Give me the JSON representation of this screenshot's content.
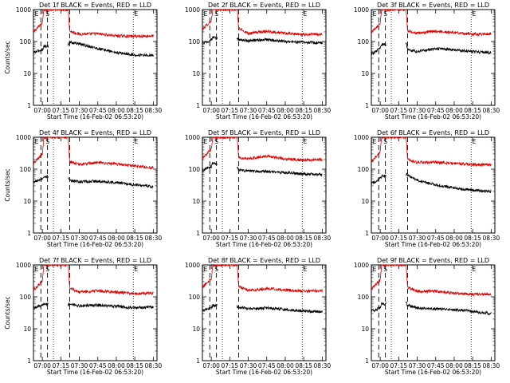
{
  "chart_data": [
    {
      "type": "line",
      "title": "Det 1f BLACK = Events, RED = LLD",
      "xlabel": "Start Time (16-Feb-02 06:53:20)",
      "ylabel": "Counts/sec",
      "x_ticks": [
        "07:00",
        "07:15",
        "07:30",
        "07:45",
        "08:00",
        "08:15",
        "08:30"
      ],
      "y_ticks": [
        "1",
        "10",
        "100",
        "1000"
      ],
      "ylim": [
        1,
        1000
      ],
      "yscale": "log",
      "markers": [
        "S",
        "E"
      ],
      "series": [
        {
          "name": "LLD",
          "color": "#e00000",
          "values": [
            [
              6.88,
              200
            ],
            [
              7.0,
              380
            ],
            [
              7.02,
              1000
            ],
            [
              7.35,
              1000
            ],
            [
              7.37,
              210
            ],
            [
              7.5,
              170
            ],
            [
              7.75,
              175
            ],
            [
              8.0,
              150
            ],
            [
              8.25,
              145
            ],
            [
              8.5,
              150
            ]
          ]
        },
        {
          "name": "Events",
          "color": "#000000",
          "values": [
            [
              6.88,
              45
            ],
            [
              7.0,
              55
            ],
            [
              7.02,
              70
            ],
            [
              7.35,
              80
            ],
            [
              7.37,
              95
            ],
            [
              7.5,
              85
            ],
            [
              7.75,
              60
            ],
            [
              8.0,
              45
            ],
            [
              8.25,
              38
            ],
            [
              8.5,
              37
            ]
          ]
        }
      ]
    },
    {
      "type": "line",
      "title": "Det 2f BLACK = Events, RED = LLD",
      "xlabel": "Start Time (16-Feb-02 06:53:20)",
      "ylabel": "",
      "x_ticks": [
        "07:00",
        "07:15",
        "07:30",
        "07:45",
        "08:00",
        "08:15",
        "08:30"
      ],
      "y_ticks": [
        "1",
        "10",
        "100",
        "1000"
      ],
      "ylim": [
        1,
        1000
      ],
      "yscale": "log",
      "markers": [
        "S",
        "E"
      ],
      "series": [
        {
          "name": "LLD",
          "color": "#e00000",
          "values": [
            [
              6.88,
              240
            ],
            [
              7.0,
              450
            ],
            [
              7.02,
              1000
            ],
            [
              7.35,
              1000
            ],
            [
              7.37,
              260
            ],
            [
              7.5,
              180
            ],
            [
              7.75,
              210
            ],
            [
              8.0,
              180
            ],
            [
              8.25,
              165
            ],
            [
              8.5,
              170
            ]
          ]
        },
        {
          "name": "Events",
          "color": "#000000",
          "values": [
            [
              6.88,
              90
            ],
            [
              7.0,
              110
            ],
            [
              7.02,
              130
            ],
            [
              7.35,
              120
            ],
            [
              7.37,
              115
            ],
            [
              7.5,
              105
            ],
            [
              7.75,
              115
            ],
            [
              8.0,
              100
            ],
            [
              8.25,
              95
            ],
            [
              8.5,
              90
            ]
          ]
        }
      ]
    },
    {
      "type": "line",
      "title": "Det 3f BLACK = Events, RED = LLD",
      "xlabel": "Start Time (16-Feb-02 06:53:20)",
      "ylabel": "",
      "x_ticks": [
        "07:00",
        "07:15",
        "07:30",
        "07:45",
        "08:00",
        "08:15",
        "08:30"
      ],
      "y_ticks": [
        "1",
        "10",
        "100",
        "1000"
      ],
      "ylim": [
        1,
        1000
      ],
      "yscale": "log",
      "markers": [
        "S",
        "E"
      ],
      "series": [
        {
          "name": "LLD",
          "color": "#e00000",
          "values": [
            [
              6.88,
              200
            ],
            [
              7.0,
              380
            ],
            [
              7.02,
              1000
            ],
            [
              7.35,
              1000
            ],
            [
              7.37,
              220
            ],
            [
              7.5,
              180
            ],
            [
              7.75,
              210
            ],
            [
              8.0,
              190
            ],
            [
              8.25,
              170
            ],
            [
              8.5,
              175
            ]
          ]
        },
        {
          "name": "Events",
          "color": "#000000",
          "values": [
            [
              6.88,
              40
            ],
            [
              7.0,
              60
            ],
            [
              7.02,
              80
            ],
            [
              7.35,
              90
            ],
            [
              7.37,
              55
            ],
            [
              7.5,
              48
            ],
            [
              7.75,
              60
            ],
            [
              8.0,
              55
            ],
            [
              8.25,
              48
            ],
            [
              8.5,
              45
            ]
          ]
        }
      ]
    },
    {
      "type": "line",
      "title": "Det 4f BLACK = Events, RED = LLD",
      "xlabel": "Start Time (16-Feb-02 06:53:20)",
      "ylabel": "Counts/sec",
      "x_ticks": [
        "07:00",
        "07:15",
        "07:30",
        "07:45",
        "08:00",
        "08:15",
        "08:30"
      ],
      "y_ticks": [
        "1",
        "10",
        "100",
        "1000"
      ],
      "ylim": [
        1,
        1000
      ],
      "yscale": "log",
      "markers": [
        "S",
        "E"
      ],
      "series": [
        {
          "name": "LLD",
          "color": "#e00000",
          "values": [
            [
              6.88,
              150
            ],
            [
              7.0,
              300
            ],
            [
              7.02,
              1000
            ],
            [
              7.35,
              1000
            ],
            [
              7.37,
              170
            ],
            [
              7.5,
              140
            ],
            [
              7.75,
              160
            ],
            [
              8.0,
              145
            ],
            [
              8.25,
              125
            ],
            [
              8.5,
              110
            ]
          ]
        },
        {
          "name": "Events",
          "color": "#000000",
          "values": [
            [
              6.88,
              40
            ],
            [
              7.0,
              50
            ],
            [
              7.02,
              60
            ],
            [
              7.35,
              55
            ],
            [
              7.37,
              45
            ],
            [
              7.5,
              40
            ],
            [
              7.75,
              42
            ],
            [
              8.0,
              38
            ],
            [
              8.25,
              32
            ],
            [
              8.5,
              28
            ]
          ]
        }
      ]
    },
    {
      "type": "line",
      "title": "Det 5f BLACK = Events, RED = LLD",
      "xlabel": "Start Time (16-Feb-02 06:53:20)",
      "ylabel": "",
      "x_ticks": [
        "07:00",
        "07:15",
        "07:30",
        "07:45",
        "08:00",
        "08:15",
        "08:30"
      ],
      "y_ticks": [
        "1",
        "10",
        "100",
        "1000"
      ],
      "ylim": [
        1,
        1000
      ],
      "yscale": "log",
      "markers": [
        "S",
        "E"
      ],
      "series": [
        {
          "name": "LLD",
          "color": "#e00000",
          "values": [
            [
              6.88,
              220
            ],
            [
              7.0,
              420
            ],
            [
              7.02,
              1000
            ],
            [
              7.35,
              1000
            ],
            [
              7.37,
              230
            ],
            [
              7.5,
              210
            ],
            [
              7.75,
              260
            ],
            [
              8.0,
              210
            ],
            [
              8.25,
              190
            ],
            [
              8.5,
              200
            ]
          ]
        },
        {
          "name": "Events",
          "color": "#000000",
          "values": [
            [
              6.88,
              90
            ],
            [
              7.0,
              120
            ],
            [
              7.02,
              150
            ],
            [
              7.35,
              120
            ],
            [
              7.37,
              95
            ],
            [
              7.5,
              88
            ],
            [
              7.75,
              85
            ],
            [
              8.0,
              78
            ],
            [
              8.25,
              70
            ],
            [
              8.5,
              68
            ]
          ]
        }
      ]
    },
    {
      "type": "line",
      "title": "Det 6f BLACK = Events, RED = LLD",
      "xlabel": "Start Time (16-Feb-02 06:53:20)",
      "ylabel": "",
      "x_ticks": [
        "07:00",
        "07:15",
        "07:30",
        "07:45",
        "08:00",
        "08:15",
        "08:30"
      ],
      "y_ticks": [
        "1",
        "10",
        "100",
        "1000"
      ],
      "ylim": [
        1,
        1000
      ],
      "yscale": "log",
      "markers": [
        "S",
        "E"
      ],
      "series": [
        {
          "name": "LLD",
          "color": "#e00000",
          "values": [
            [
              6.88,
              170
            ],
            [
              7.0,
              350
            ],
            [
              7.02,
              1000
            ],
            [
              7.35,
              1000
            ],
            [
              7.37,
              200
            ],
            [
              7.5,
              160
            ],
            [
              7.75,
              165
            ],
            [
              8.0,
              150
            ],
            [
              8.25,
              140
            ],
            [
              8.5,
              135
            ]
          ]
        },
        {
          "name": "Events",
          "color": "#000000",
          "values": [
            [
              6.88,
              35
            ],
            [
              7.0,
              50
            ],
            [
              7.02,
              60
            ],
            [
              7.35,
              70
            ],
            [
              7.37,
              65
            ],
            [
              7.5,
              45
            ],
            [
              7.75,
              32
            ],
            [
              8.0,
              26
            ],
            [
              8.25,
              22
            ],
            [
              8.5,
              20
            ]
          ]
        }
      ]
    },
    {
      "type": "line",
      "title": "Det 7f BLACK = Events, RED = LLD",
      "xlabel": "Start Time (16-Feb-02 06:53:20)",
      "ylabel": "Counts/sec",
      "x_ticks": [
        "07:00",
        "07:15",
        "07:30",
        "07:45",
        "08:00",
        "08:15",
        "08:30"
      ],
      "y_ticks": [
        "1",
        "10",
        "100",
        "1000"
      ],
      "ylim": [
        1,
        1000
      ],
      "yscale": "log",
      "markers": [
        "S",
        "E"
      ],
      "series": [
        {
          "name": "LLD",
          "color": "#e00000",
          "values": [
            [
              6.88,
              160
            ],
            [
              7.0,
              320
            ],
            [
              7.02,
              1000
            ],
            [
              7.35,
              1000
            ],
            [
              7.37,
              190
            ],
            [
              7.5,
              140
            ],
            [
              7.75,
              155
            ],
            [
              8.0,
              140
            ],
            [
              8.25,
              125
            ],
            [
              8.5,
              130
            ]
          ]
        },
        {
          "name": "Events",
          "color": "#000000",
          "values": [
            [
              6.88,
              45
            ],
            [
              7.0,
              55
            ],
            [
              7.02,
              60
            ],
            [
              7.35,
              55
            ],
            [
              7.37,
              60
            ],
            [
              7.5,
              52
            ],
            [
              7.75,
              55
            ],
            [
              8.0,
              50
            ],
            [
              8.25,
              45
            ],
            [
              8.5,
              48
            ]
          ]
        }
      ]
    },
    {
      "type": "line",
      "title": "Det 8f BLACK = Events, RED = LLD",
      "xlabel": "Start Time (16-Feb-02 06:53:20)",
      "ylabel": "",
      "x_ticks": [
        "07:00",
        "07:15",
        "07:30",
        "07:45",
        "08:00",
        "08:15",
        "08:30"
      ],
      "y_ticks": [
        "1",
        "10",
        "100",
        "1000"
      ],
      "ylim": [
        1,
        1000
      ],
      "yscale": "log",
      "markers": [
        "S",
        "E"
      ],
      "series": [
        {
          "name": "LLD",
          "color": "#e00000",
          "values": [
            [
              6.88,
              200
            ],
            [
              7.0,
              380
            ],
            [
              7.02,
              1000
            ],
            [
              7.35,
              1000
            ],
            [
              7.37,
              210
            ],
            [
              7.5,
              160
            ],
            [
              7.75,
              180
            ],
            [
              8.0,
              165
            ],
            [
              8.25,
              150
            ],
            [
              8.5,
              155
            ]
          ]
        },
        {
          "name": "Events",
          "color": "#000000",
          "values": [
            [
              6.88,
              38
            ],
            [
              7.0,
              45
            ],
            [
              7.02,
              55
            ],
            [
              7.35,
              50
            ],
            [
              7.37,
              48
            ],
            [
              7.5,
              42
            ],
            [
              7.75,
              45
            ],
            [
              8.0,
              40
            ],
            [
              8.25,
              36
            ],
            [
              8.5,
              34
            ]
          ]
        }
      ]
    },
    {
      "type": "line",
      "title": "Det 9f BLACK = Events, RED = LLD",
      "xlabel": "Start Time (16-Feb-02 06:53:20)",
      "ylabel": "",
      "x_ticks": [
        "07:00",
        "07:15",
        "07:30",
        "07:45",
        "08:00",
        "08:15",
        "08:30"
      ],
      "y_ticks": [
        "1",
        "10",
        "100",
        "1000"
      ],
      "ylim": [
        1,
        1000
      ],
      "yscale": "log",
      "markers": [
        "S",
        "E"
      ],
      "series": [
        {
          "name": "LLD",
          "color": "#e00000",
          "values": [
            [
              6.88,
              170
            ],
            [
              7.0,
              350
            ],
            [
              7.02,
              1000
            ],
            [
              7.35,
              1000
            ],
            [
              7.37,
              200
            ],
            [
              7.5,
              150
            ],
            [
              7.75,
              150
            ],
            [
              8.0,
              130
            ],
            [
              8.25,
              120
            ],
            [
              8.5,
              120
            ]
          ]
        },
        {
          "name": "Events",
          "color": "#000000",
          "values": [
            [
              6.88,
              35
            ],
            [
              7.0,
              45
            ],
            [
              7.02,
              60
            ],
            [
              7.35,
              65
            ],
            [
              7.37,
              55
            ],
            [
              7.5,
              45
            ],
            [
              7.75,
              42
            ],
            [
              8.0,
              40
            ],
            [
              8.25,
              35
            ],
            [
              8.5,
              30
            ]
          ]
        }
      ]
    }
  ]
}
